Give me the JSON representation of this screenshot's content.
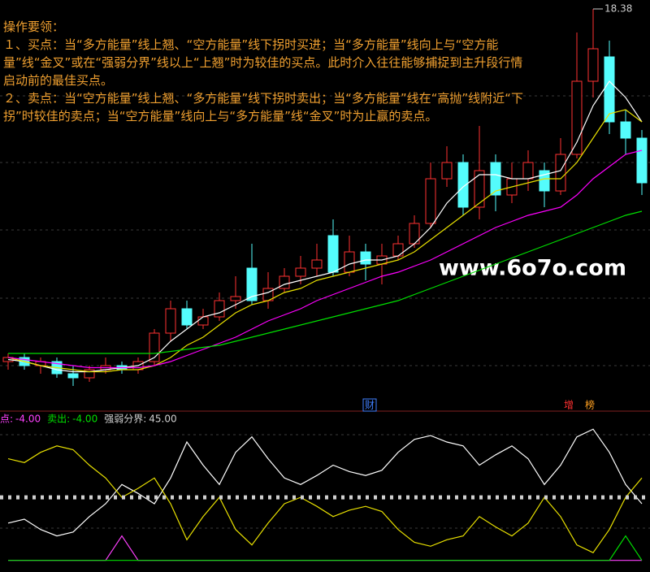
{
  "notes": {
    "title": "操作要领：",
    "items": [
      "１、买点：当“多方能量”线上翘、“空方能量”线下拐时买进；当“多方能量”线向上与“空方能量”线“金叉”或在“强弱分界”线以上“上翘”时为较佳的买点。此时介入往往能够捕捉到主升段行情启动前的最佳买点。",
      "２、卖点：当“空方能量”线上翘、“多方能量”线下拐时卖出；当“多方能量”线在“高抛”线附近“下拐”时较佳的卖点；当“空方能量”线向上与“多方能量”线“金叉”时为止赢的卖点。"
    ]
  },
  "watermark": "www.6o7o.com",
  "markers": [
    {
      "label": "财",
      "color": "#4080ff"
    },
    {
      "label": "增",
      "color": "#ff3030"
    },
    {
      "label": "榜",
      "color": "#ffa020"
    }
  ],
  "chart_data": [
    {
      "type": "candlestick",
      "up_color": "#ff3232",
      "down_color": "#54fcfc",
      "ylim": [
        8.6,
        18.6
      ],
      "open": [
        9.7,
        9.8,
        9.6,
        9.7,
        9.4,
        9.3,
        9.5,
        9.6,
        9.5,
        9.7,
        10.4,
        11.0,
        10.6,
        10.8,
        11.2,
        12.0,
        11.2,
        11.5,
        11.8,
        12.0,
        12.8,
        11.9,
        12.4,
        12.1,
        12.3,
        12.6,
        13.1,
        14.2,
        14.6,
        13.5,
        14.6,
        13.8,
        14.2,
        14.4,
        13.9,
        14.8,
        16.6,
        17.2,
        15.6,
        15.2
      ],
      "high": [
        9.9,
        9.9,
        9.8,
        9.8,
        9.6,
        9.6,
        9.8,
        9.7,
        9.8,
        10.5,
        11.2,
        11.2,
        11.0,
        11.4,
        11.8,
        12.6,
        11.9,
        12.0,
        12.3,
        12.6,
        13.2,
        12.8,
        12.6,
        12.6,
        12.8,
        13.3,
        14.6,
        15.0,
        14.8,
        15.5,
        14.8,
        14.6,
        14.9,
        14.6,
        15.2,
        17.8,
        18.38,
        17.6,
        15.9,
        15.4
      ],
      "low": [
        9.5,
        9.5,
        9.4,
        9.3,
        9.1,
        9.2,
        9.4,
        9.4,
        9.4,
        9.6,
        10.2,
        10.5,
        10.5,
        10.7,
        11.0,
        11.1,
        11.0,
        11.4,
        11.6,
        11.8,
        11.8,
        11.8,
        11.7,
        11.6,
        12.2,
        12.5,
        13.0,
        14.0,
        13.3,
        13.2,
        13.4,
        13.6,
        13.9,
        13.5,
        13.8,
        14.7,
        16.2,
        15.3,
        14.8,
        13.8
      ],
      "close": [
        9.8,
        9.6,
        9.7,
        9.4,
        9.3,
        9.5,
        9.6,
        9.5,
        9.7,
        10.4,
        11.0,
        10.6,
        10.8,
        11.2,
        11.3,
        11.2,
        11.5,
        11.8,
        12.0,
        12.2,
        11.9,
        12.4,
        12.1,
        12.3,
        12.6,
        13.1,
        14.2,
        14.6,
        13.5,
        14.4,
        13.8,
        14.2,
        14.6,
        13.9,
        14.8,
        16.6,
        17.4,
        15.6,
        15.2,
        14.1
      ],
      "series": [
        {
          "color": "#ffffff",
          "values": [
            9.75,
            9.7,
            9.6,
            9.5,
            9.45,
            9.45,
            9.5,
            9.55,
            9.6,
            9.8,
            10.2,
            10.5,
            10.8,
            10.9,
            11.1,
            11.3,
            11.4,
            11.6,
            11.7,
            11.8,
            11.9,
            12.1,
            12.2,
            12.2,
            12.3,
            12.6,
            13.0,
            13.6,
            14.0,
            14.3,
            14.3,
            14.2,
            14.2,
            14.3,
            14.4,
            15.1,
            16.0,
            16.6,
            16.2,
            15.6
          ]
        },
        {
          "color": "#e8e000",
          "values": [
            9.8,
            9.7,
            9.6,
            9.55,
            9.5,
            9.45,
            9.45,
            9.5,
            9.5,
            9.6,
            9.8,
            10.1,
            10.3,
            10.6,
            10.9,
            11.1,
            11.2,
            11.4,
            11.5,
            11.7,
            11.8,
            11.9,
            12.0,
            12.1,
            12.2,
            12.4,
            12.7,
            13.0,
            13.3,
            13.6,
            13.9,
            14.0,
            14.1,
            14.2,
            14.2,
            14.6,
            15.2,
            15.8,
            15.9,
            15.6
          ]
        },
        {
          "color": "#ff00ff",
          "values": [
            9.8,
            9.75,
            9.7,
            9.65,
            9.6,
            9.55,
            9.55,
            9.55,
            9.55,
            9.6,
            9.7,
            9.85,
            10.0,
            10.15,
            10.3,
            10.5,
            10.7,
            10.85,
            11.0,
            11.2,
            11.35,
            11.5,
            11.65,
            11.8,
            11.9,
            12.05,
            12.2,
            12.4,
            12.6,
            12.8,
            13.0,
            13.15,
            13.3,
            13.4,
            13.5,
            13.8,
            14.2,
            14.5,
            14.8,
            14.9
          ]
        },
        {
          "color": "#00e000",
          "values": [
            9.9,
            9.9,
            9.9,
            9.9,
            9.9,
            9.9,
            9.9,
            9.9,
            9.9,
            9.9,
            9.95,
            10.0,
            10.05,
            10.1,
            10.2,
            10.3,
            10.4,
            10.5,
            10.6,
            10.7,
            10.8,
            10.9,
            11.0,
            11.1,
            11.2,
            11.35,
            11.5,
            11.65,
            11.8,
            11.95,
            12.1,
            12.25,
            12.4,
            12.55,
            12.7,
            12.85,
            13.0,
            13.15,
            13.3,
            13.4
          ]
        }
      ]
    },
    {
      "type": "line",
      "ylim": [
        -8,
        100
      ],
      "series": [
        {
          "color": "#ffffff",
          "values": [
            25,
            28,
            20,
            15,
            18,
            30,
            40,
            55,
            48,
            40,
            60,
            88,
            70,
            55,
            80,
            92,
            75,
            60,
            55,
            62,
            70,
            65,
            62,
            66,
            80,
            90,
            93,
            88,
            85,
            70,
            78,
            85,
            75,
            55,
            70,
            92,
            98,
            80,
            55,
            40
          ]
        },
        {
          "color": "#e8e000",
          "values": [
            75,
            72,
            80,
            85,
            82,
            70,
            60,
            45,
            52,
            60,
            40,
            12,
            30,
            45,
            20,
            8,
            25,
            40,
            45,
            38,
            30,
            35,
            38,
            34,
            20,
            10,
            7,
            12,
            15,
            30,
            22,
            15,
            25,
            45,
            30,
            8,
            2,
            20,
            45,
            60
          ]
        },
        {
          "name": "点:",
          "color": "#ff40ff",
          "value_label": "-4.00",
          "values": [
            -4,
            -4,
            -4,
            -4,
            -4,
            -4,
            -4,
            15,
            -4,
            -4,
            -4,
            -4,
            -4,
            -4,
            -4,
            -4,
            -4,
            -4,
            -4,
            -4,
            -4,
            -4,
            -4,
            -4,
            -4,
            -4,
            -4,
            -4,
            -4,
            -4,
            -4,
            -4,
            -4,
            -4,
            -4,
            -4,
            -4,
            -4,
            -4,
            -4
          ]
        },
        {
          "name": "卖出:",
          "color": "#00e000",
          "value_label": "-4.00",
          "values": [
            -4,
            -4,
            -4,
            -4,
            -4,
            -4,
            -4,
            -4,
            -4,
            -4,
            -4,
            -4,
            -4,
            -4,
            -4,
            -4,
            -4,
            -4,
            -4,
            -4,
            -4,
            -4,
            -4,
            -4,
            -4,
            -4,
            -4,
            -4,
            -4,
            -4,
            -4,
            -4,
            -4,
            -4,
            -4,
            -4,
            -4,
            -4,
            15,
            -4
          ]
        },
        {
          "name": "强弱分界:",
          "color": "#d0d0d0",
          "value_label": "45.00",
          "value": 45
        }
      ]
    }
  ]
}
